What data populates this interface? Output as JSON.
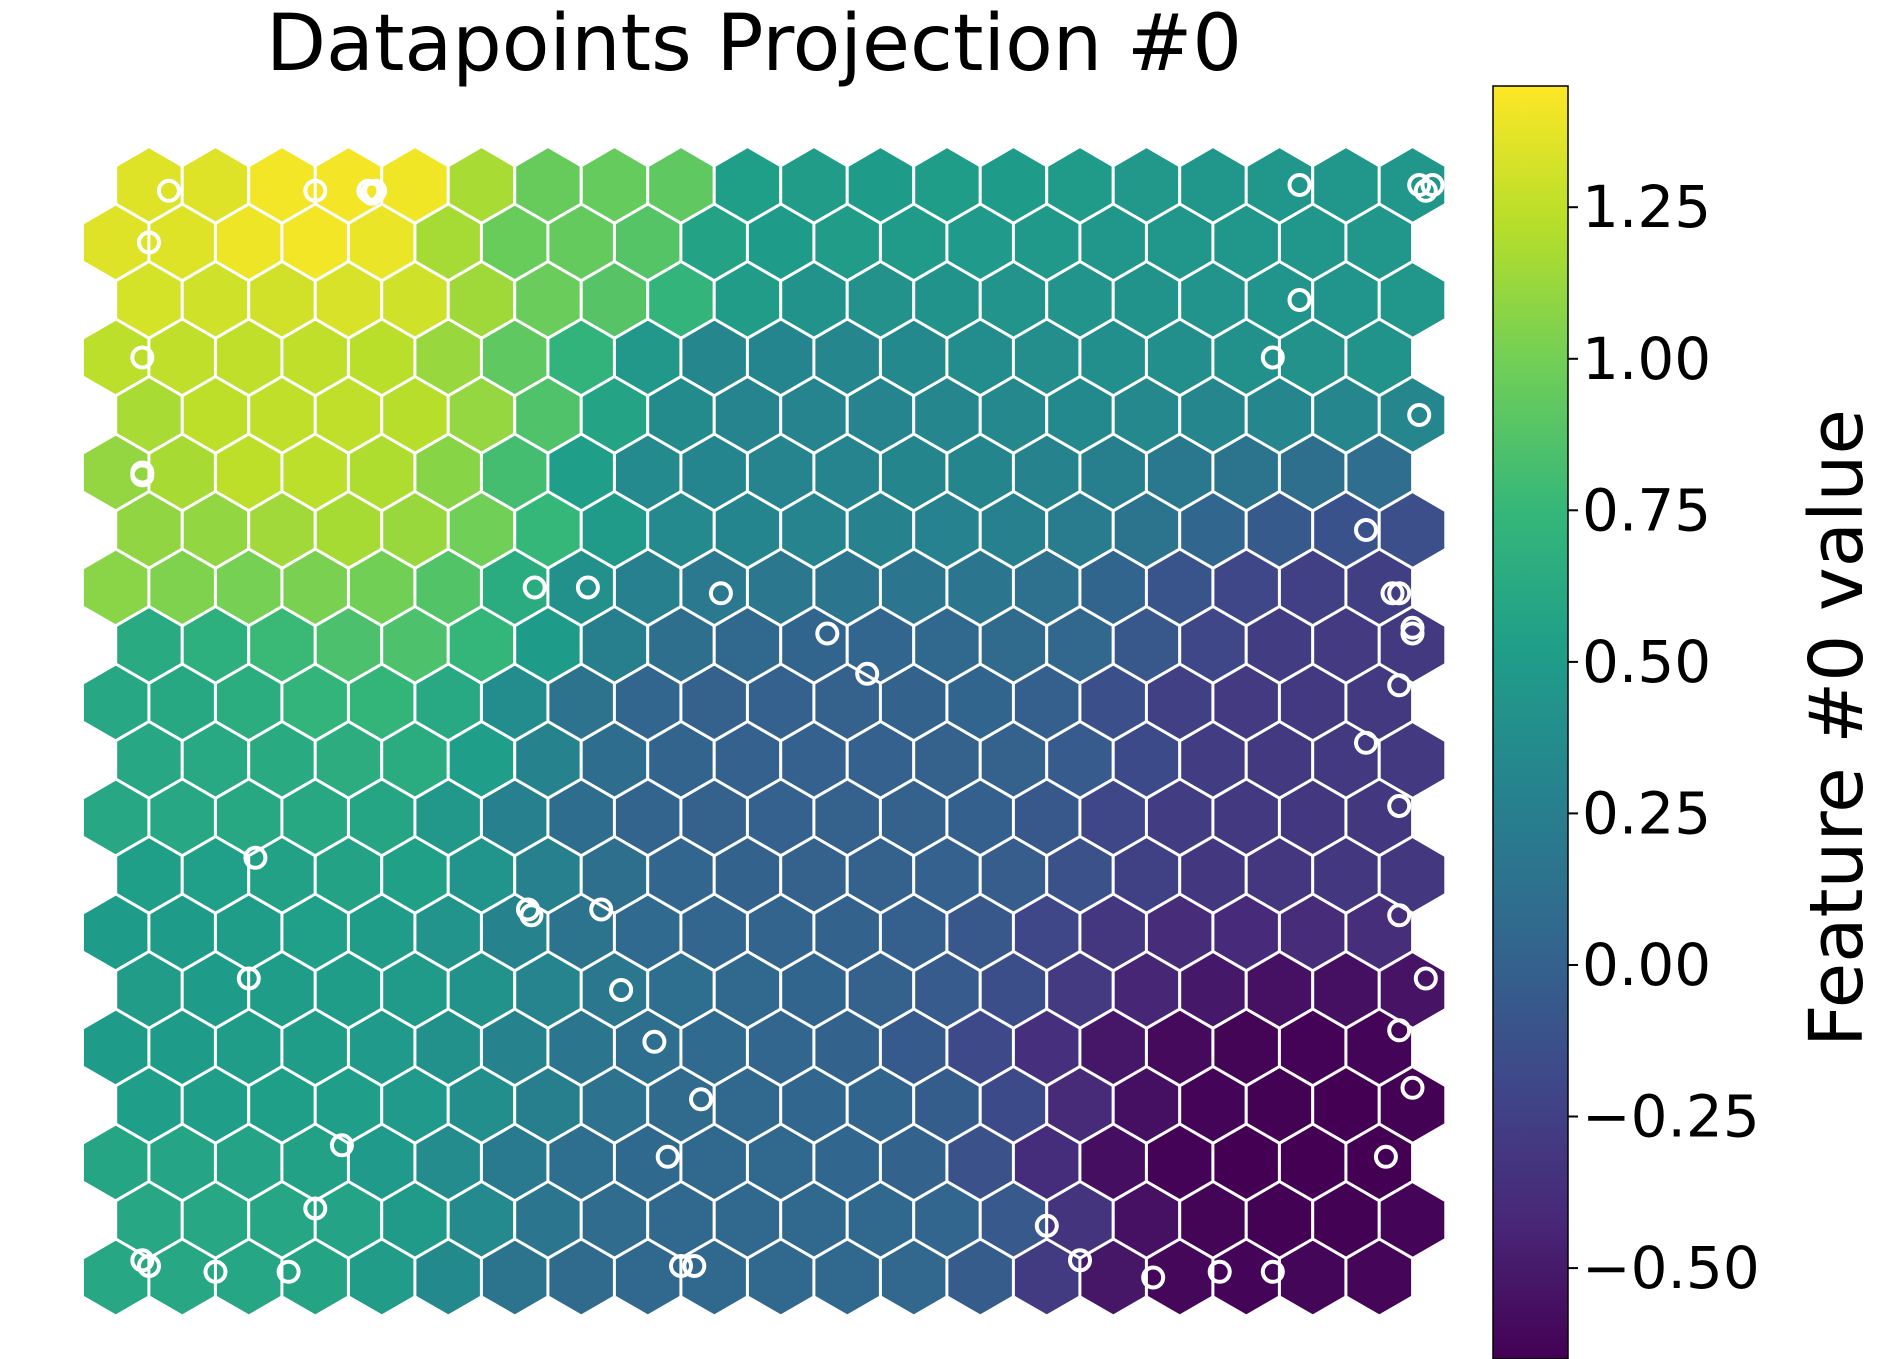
{
  "chart_data": {
    "type": "heatmap",
    "subtype": "self-organizing-map-hex-grid",
    "title": "Datapoints Projection #0",
    "grid": {
      "rows": 20,
      "cols": 20
    },
    "colormap": "viridis",
    "colormap_stops": [
      "#440154",
      "#482878",
      "#3e4989",
      "#31688e",
      "#26828e",
      "#1f9e89",
      "#35b779",
      "#6ece58",
      "#b5de2b",
      "#fde725"
    ],
    "value_range": [
      -0.65,
      1.45
    ],
    "value_field": {
      "description": "node values vary smoothly: high (about 1.4) at upper-left, low (about -0.6) at lower-right",
      "anchors": [
        {
          "row": 0,
          "col": 3,
          "value": 1.42
        },
        {
          "row": 0,
          "col": 0,
          "value": 1.35
        },
        {
          "row": 0,
          "col": 7,
          "value": 0.95
        },
        {
          "row": 0,
          "col": 10,
          "value": 0.5
        },
        {
          "row": 0,
          "col": 19,
          "value": 0.45
        },
        {
          "row": 4,
          "col": 2,
          "value": 1.25
        },
        {
          "row": 4,
          "col": 10,
          "value": 0.3
        },
        {
          "row": 6,
          "col": 0,
          "value": 1.1
        },
        {
          "row": 9,
          "col": 0,
          "value": 0.6
        },
        {
          "row": 10,
          "col": 10,
          "value": 0.0
        },
        {
          "row": 10,
          "col": 19,
          "value": -0.3
        },
        {
          "row": 14,
          "col": 0,
          "value": 0.5
        },
        {
          "row": 19,
          "col": 0,
          "value": 0.6
        },
        {
          "row": 19,
          "col": 10,
          "value": 0.05
        },
        {
          "row": 19,
          "col": 19,
          "value": -0.62
        },
        {
          "row": 17,
          "col": 18,
          "value": -0.65
        }
      ]
    },
    "datapoints": [
      {
        "x": 0.8,
        "y": 0.6
      },
      {
        "x": 3.0,
        "y": 0.6
      },
      {
        "x": 3.8,
        "y": 0.6
      },
      {
        "x": 3.9,
        "y": 0.6
      },
      {
        "x": 3.85,
        "y": 0.65
      },
      {
        "x": 17.8,
        "y": 0.5
      },
      {
        "x": 19.8,
        "y": 0.5
      },
      {
        "x": 19.7,
        "y": 0.6
      },
      {
        "x": 19.6,
        "y": 0.5
      },
      {
        "x": 0.5,
        "y": 1.5
      },
      {
        "x": 17.8,
        "y": 2.5
      },
      {
        "x": 0.4,
        "y": 3.5
      },
      {
        "x": 17.4,
        "y": 3.5
      },
      {
        "x": 19.6,
        "y": 4.5
      },
      {
        "x": 0.4,
        "y": 5.5
      },
      {
        "x": 0.4,
        "y": 5.55
      },
      {
        "x": 18.8,
        "y": 6.5
      },
      {
        "x": 6.3,
        "y": 7.5
      },
      {
        "x": 7.1,
        "y": 7.5
      },
      {
        "x": 9.1,
        "y": 7.6
      },
      {
        "x": 19.2,
        "y": 7.6
      },
      {
        "x": 19.3,
        "y": 7.6
      },
      {
        "x": 10.7,
        "y": 8.3
      },
      {
        "x": 19.5,
        "y": 8.2
      },
      {
        "x": 19.5,
        "y": 8.3
      },
      {
        "x": 11.3,
        "y": 9.0
      },
      {
        "x": 19.3,
        "y": 9.2
      },
      {
        "x": 18.8,
        "y": 10.2
      },
      {
        "x": 19.3,
        "y": 11.3
      },
      {
        "x": 2.1,
        "y": 12.2
      },
      {
        "x": 6.2,
        "y": 13.1
      },
      {
        "x": 6.25,
        "y": 13.2
      },
      {
        "x": 7.3,
        "y": 13.1
      },
      {
        "x": 19.3,
        "y": 13.2
      },
      {
        "x": 2.0,
        "y": 14.3
      },
      {
        "x": 7.6,
        "y": 14.5
      },
      {
        "x": 19.7,
        "y": 14.3
      },
      {
        "x": 8.1,
        "y": 15.4
      },
      {
        "x": 19.3,
        "y": 15.2
      },
      {
        "x": 8.8,
        "y": 16.4
      },
      {
        "x": 19.5,
        "y": 16.2
      },
      {
        "x": 3.4,
        "y": 17.2
      },
      {
        "x": 8.3,
        "y": 17.4
      },
      {
        "x": 19.1,
        "y": 17.4
      },
      {
        "x": 3.0,
        "y": 18.3
      },
      {
        "x": 14.0,
        "y": 18.6
      },
      {
        "x": 0.4,
        "y": 19.2
      },
      {
        "x": 0.5,
        "y": 19.3
      },
      {
        "x": 1.5,
        "y": 19.4
      },
      {
        "x": 2.6,
        "y": 19.4
      },
      {
        "x": 8.5,
        "y": 19.3
      },
      {
        "x": 8.7,
        "y": 19.3
      },
      {
        "x": 14.5,
        "y": 19.2
      },
      {
        "x": 15.6,
        "y": 19.5
      },
      {
        "x": 16.6,
        "y": 19.4
      },
      {
        "x": 17.4,
        "y": 19.4
      }
    ],
    "colorbar": {
      "label": "Feature #0 value",
      "range": [
        -0.65,
        1.45
      ],
      "ticks": [
        -0.5,
        -0.25,
        0.0,
        0.25,
        0.5,
        0.75,
        1.0,
        1.25
      ],
      "tick_labels": [
        "−0.50",
        "−0.25",
        "0.00",
        "0.25",
        "0.50",
        "0.75",
        "1.00",
        "1.25"
      ]
    }
  }
}
